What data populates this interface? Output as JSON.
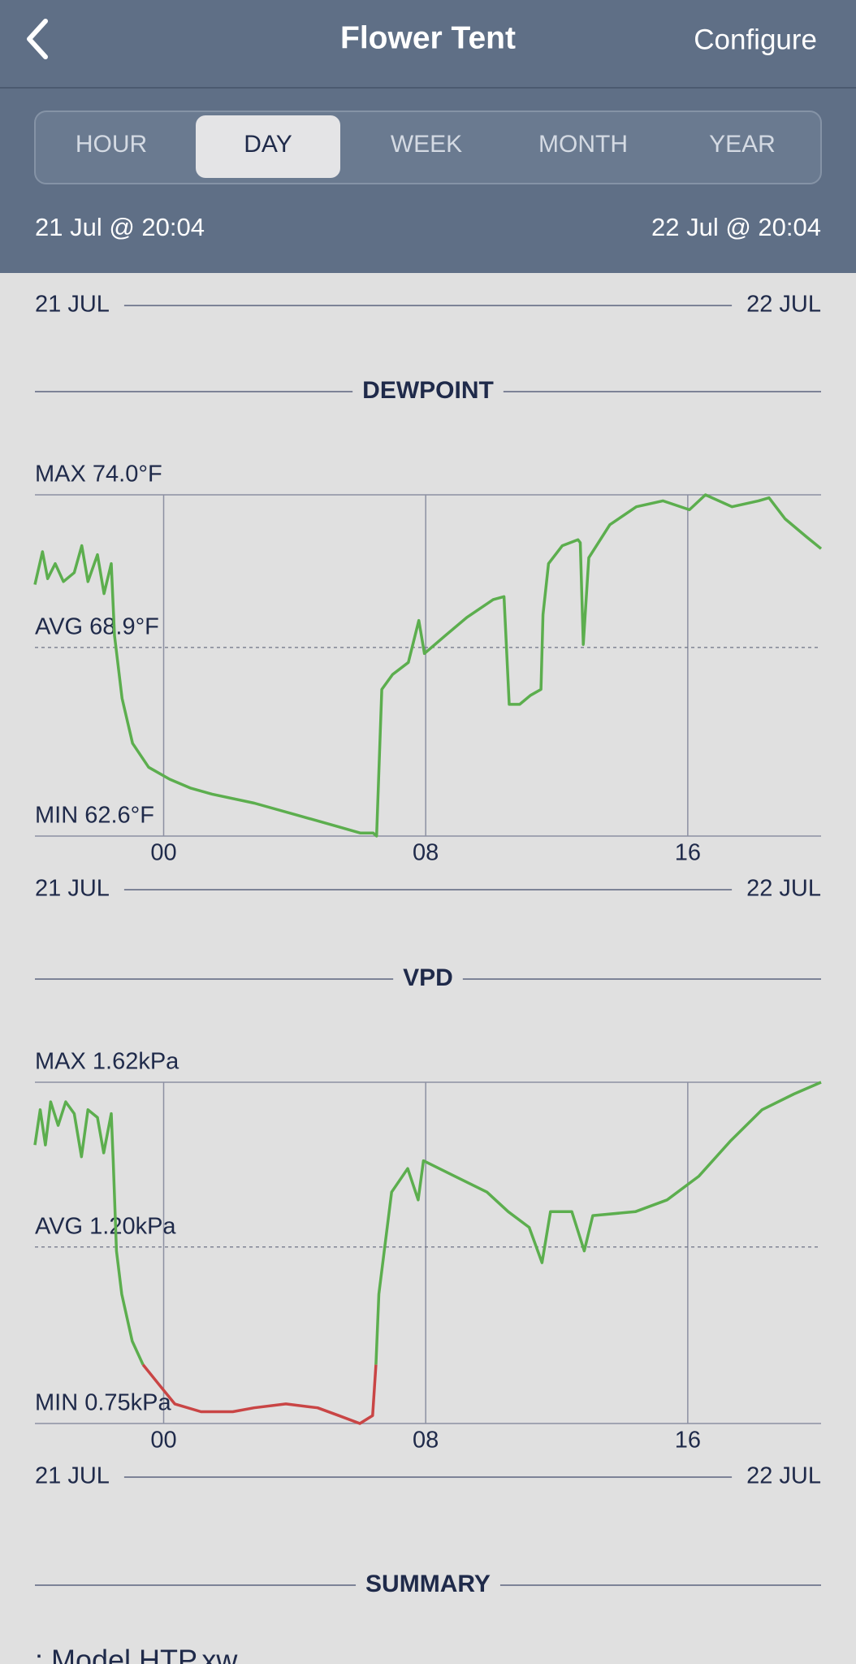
{
  "header": {
    "title": "Flower Tent",
    "action": "Configure"
  },
  "tabs": {
    "items": [
      "HOUR",
      "DAY",
      "WEEK",
      "MONTH",
      "YEAR"
    ],
    "selected": 1
  },
  "range": {
    "start": "21 Jul @ 20:04",
    "end": "22 Jul @ 20:04"
  },
  "previous_axis": {
    "start": "21 JUL",
    "end": "22 JUL"
  },
  "chart_data": [
    {
      "type": "line",
      "title": "DEWPOINT",
      "x": [
        0,
        0.23,
        0.39,
        0.62,
        0.87,
        1.2,
        1.43,
        1.62,
        1.91,
        2.11,
        2.33,
        2.43,
        2.66,
        2.98,
        3.47,
        4.11,
        4.76,
        5.41,
        6.7,
        8.0,
        9.3,
        9.94,
        10.33,
        10.43,
        10.59,
        10.92,
        11.4,
        11.72,
        11.89,
        12.53,
        13.18,
        13.99,
        14.32,
        14.48,
        14.8,
        15.13,
        15.45,
        15.51,
        15.68,
        16.1,
        16.58,
        16.65,
        16.74,
        16.91,
        17.55,
        18.36,
        19.17,
        19.98,
        20.47,
        21.28,
        22.09,
        22.41,
        22.9,
        23.55,
        24
      ],
      "xlim": [
        0,
        24
      ],
      "xticks": [
        {
          "value": 3.93,
          "label": "00"
        },
        {
          "value": 11.93,
          "label": "08"
        },
        {
          "value": 19.93,
          "label": "16"
        }
      ],
      "ylim": [
        62.6,
        74.0
      ],
      "yticks": [
        {
          "value": 74.0,
          "label": "MAX 74.0°F"
        },
        {
          "value": 68.9,
          "label": "AVG 68.9°F"
        },
        {
          "value": 62.6,
          "label": "MIN 62.6°F"
        }
      ],
      "series": [
        {
          "color": "#5cae4e",
          "values": [
            71.0,
            72.1,
            71.2,
            71.7,
            71.1,
            71.4,
            72.3,
            71.1,
            72.0,
            70.7,
            71.7,
            69.3,
            67.2,
            65.7,
            64.9,
            64.5,
            64.2,
            64.0,
            63.7,
            63.3,
            62.9,
            62.7,
            62.7,
            62.6,
            67.5,
            68.0,
            68.4,
            69.8,
            68.7,
            69.3,
            69.9,
            70.5,
            70.6,
            67.0,
            67.0,
            67.3,
            67.5,
            70.0,
            71.7,
            72.3,
            72.5,
            72.4,
            69.0,
            71.9,
            73.0,
            73.6,
            73.8,
            73.5,
            74.0,
            73.6,
            73.8,
            73.9,
            73.2,
            72.6,
            72.2
          ]
        }
      ],
      "date_start": "21 JUL",
      "date_end": "22 JUL"
    },
    {
      "type": "line",
      "title": "VPD",
      "x": [
        0,
        0.16,
        0.32,
        0.48,
        0.71,
        0.94,
        1.2,
        1.42,
        1.62,
        1.91,
        2.1,
        2.33,
        2.39,
        2.49,
        2.65,
        2.97,
        3.3,
        3.78,
        4.27,
        5.07,
        6.04,
        6.69,
        7.66,
        8.63,
        9.28,
        9.92,
        10.31,
        10.41,
        10.5,
        10.89,
        11.38,
        11.7,
        11.86,
        12.83,
        13.8,
        14.45,
        15.09,
        15.48,
        15.74,
        16.39,
        16.77,
        17.03,
        18.33,
        19.3,
        20.26,
        21.23,
        22.2,
        23.17,
        24
      ],
      "xlim": [
        0,
        24
      ],
      "xticks": [
        {
          "value": 3.93,
          "label": "00"
        },
        {
          "value": 11.93,
          "label": "08"
        },
        {
          "value": 19.93,
          "label": "16"
        }
      ],
      "ylim": [
        0.75,
        1.62
      ],
      "yticks": [
        {
          "value": 1.62,
          "label": "MAX 1.62kPa"
        },
        {
          "value": 1.2,
          "label": "AVG 1.20kPa"
        },
        {
          "value": 0.75,
          "label": "MIN 0.75kPa"
        }
      ],
      "series": [
        {
          "color": "#5cae4e",
          "values": [
            1.46,
            1.55,
            1.46,
            1.57,
            1.51,
            1.57,
            1.54,
            1.43,
            1.55,
            1.53,
            1.44,
            1.54,
            1.42,
            1.19,
            1.08,
            0.96,
            0.9,
            null,
            null,
            null,
            null,
            null,
            null,
            null,
            null,
            null,
            null,
            0.9,
            1.08,
            1.34,
            1.4,
            1.32,
            1.42,
            1.38,
            1.34,
            1.29,
            1.25,
            1.16,
            1.29,
            1.29,
            1.19,
            1.28,
            1.29,
            1.32,
            1.38,
            1.47,
            1.55,
            1.59,
            1.62
          ]
        },
        {
          "color": "#c94545",
          "values": [
            null,
            null,
            null,
            null,
            null,
            null,
            null,
            null,
            null,
            null,
            null,
            null,
            null,
            null,
            null,
            null,
            0.9,
            0.85,
            0.8,
            0.78,
            0.78,
            0.79,
            0.8,
            0.79,
            0.77,
            0.75,
            0.77,
            0.9,
            null,
            null,
            null,
            null,
            null,
            null,
            null,
            null,
            null,
            null,
            null,
            null,
            null,
            null,
            null,
            null,
            null,
            null,
            null,
            null,
            null
          ]
        }
      ],
      "date_start": "21 JUL",
      "date_end": "22 JUL"
    }
  ],
  "summary": {
    "title": "SUMMARY",
    "first_line": ": Model HTP.xw"
  }
}
